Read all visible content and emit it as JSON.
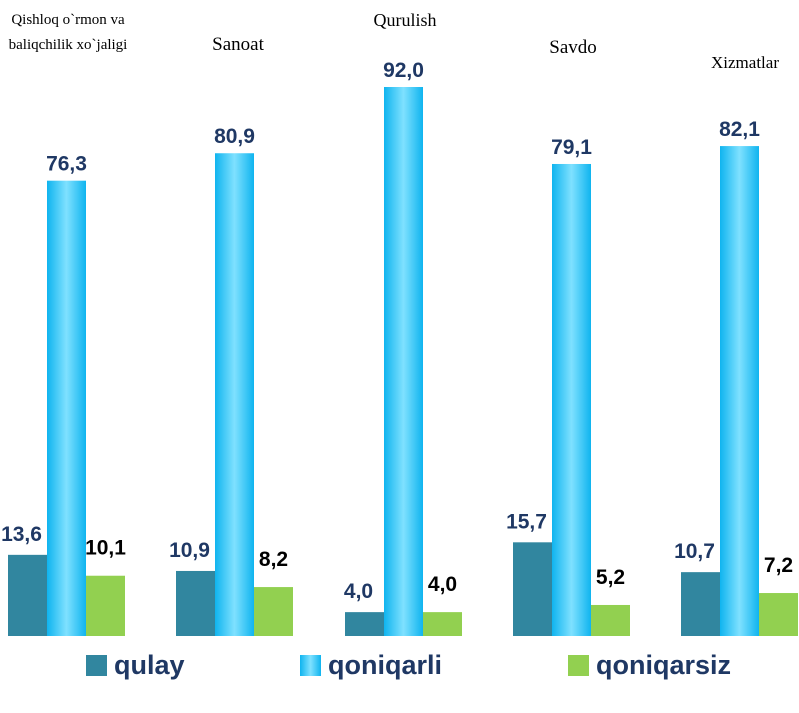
{
  "chart_data": {
    "type": "bar",
    "categories": [
      "Qishloq o`rmon va baliqchilik xo`jaligi",
      "Sanoat",
      "Qurulish",
      "Savdo",
      "Xizmatlar"
    ],
    "series": [
      {
        "name": "qulay",
        "color": "#31869f",
        "values": [
          13.6,
          10.9,
          4.0,
          15.7,
          10.7
        ],
        "value_labels": [
          "13,6",
          "10,9",
          "4,0",
          "15,7",
          "10,7"
        ]
      },
      {
        "name": "qoniqarli",
        "color": "#0fb4ef",
        "values": [
          76.3,
          80.9,
          92.0,
          79.1,
          82.1
        ],
        "value_labels": [
          "76,3",
          "80,9",
          "92,0",
          "79,1",
          "82,1"
        ]
      },
      {
        "name": "qoniqarsiz",
        "color": "#92d050",
        "values": [
          10.1,
          8.2,
          4.0,
          5.2,
          7.2
        ],
        "value_labels": [
          "10,1",
          "8,2",
          "4,0",
          "5,2",
          "7,2"
        ]
      }
    ],
    "legend": "bottom"
  }
}
